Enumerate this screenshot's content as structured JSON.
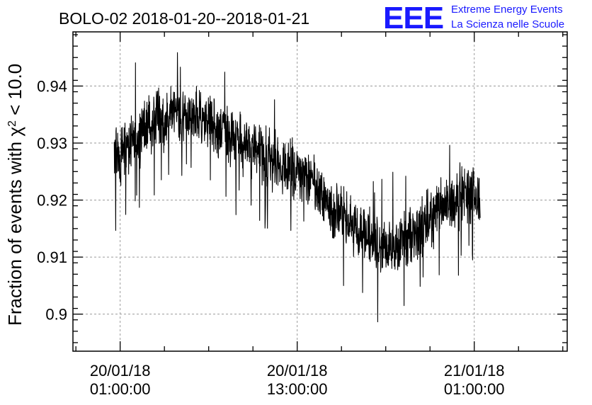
{
  "header": {
    "title": "BOLO-02 2018-01-20--2018-01-21",
    "logo_text": "EEE",
    "logo_line1": "Extreme Energy Events",
    "logo_line2": "La Scienza nelle Scuole",
    "logo_color": "#1a1aff"
  },
  "chart_data": {
    "type": "line",
    "title": "BOLO-02 2018-01-20--2018-01-21",
    "ylabel_prefix": "Fraction of events with χ",
    "ylabel_sup": "2",
    "ylabel_suffix": " < 10.0",
    "xlabel": "",
    "ylim": [
      0.8935,
      0.9495
    ],
    "yticks": [
      0.9,
      0.91,
      0.92,
      0.93,
      0.94
    ],
    "ytick_labels": [
      "0.9",
      "0.91",
      "0.92",
      "0.93",
      "0.94"
    ],
    "xlim_hours": [
      -3.2,
      30.3
    ],
    "xtick_hours": [
      0,
      12,
      24
    ],
    "xtick_labels": [
      {
        "date": "20/01/18",
        "time": "01:00:00"
      },
      {
        "date": "20/01/18",
        "time": "13:00:00"
      },
      {
        "date": "21/01/18",
        "time": "01:00:00"
      }
    ],
    "x_start": "20/01/18 00:37:00",
    "x_end": "21/01/18 01:24:00",
    "grid": true,
    "line_color": "#000000",
    "series": [
      {
        "x_hours": [
          -0.4,
          0.5,
          1.5,
          2.5,
          3.5,
          4.5,
          5.5,
          6.5,
          7.5,
          8.5,
          9.5,
          10.5,
          11.5,
          12.5,
          13.5,
          14.5,
          15.5,
          16.5,
          17.5,
          18.5,
          19.5,
          20.5,
          21.5,
          22.5,
          23.5,
          24.4
        ],
        "values": [
          0.9275,
          0.929,
          0.932,
          0.934,
          0.935,
          0.935,
          0.934,
          0.933,
          0.9315,
          0.9295,
          0.928,
          0.927,
          0.926,
          0.925,
          0.921,
          0.918,
          0.916,
          0.914,
          0.912,
          0.912,
          0.913,
          0.915,
          0.918,
          0.92,
          0.921,
          0.92
        ],
        "noise_amplitude": 0.0065
      }
    ]
  }
}
